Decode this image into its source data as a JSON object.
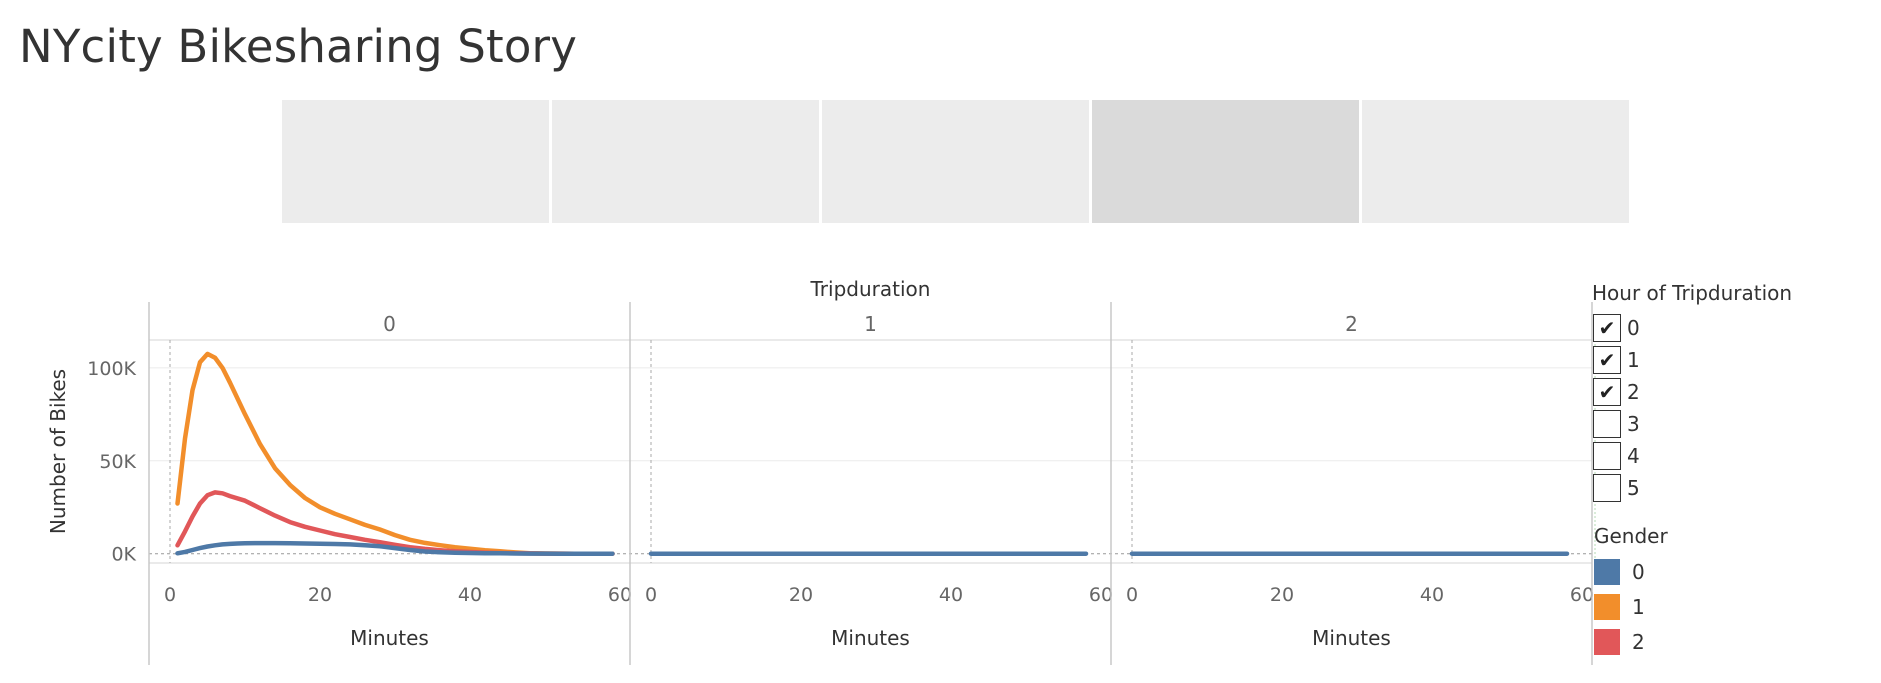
{
  "story": {
    "title": "NYcity Bikesharing Story",
    "points": [
      {
        "active": false
      },
      {
        "active": false
      },
      {
        "active": false
      },
      {
        "active": true
      },
      {
        "active": false
      }
    ]
  },
  "chart_data": {
    "type": "line",
    "title": "",
    "column_header": "Tripduration",
    "panels": [
      "0",
      "1",
      "2"
    ],
    "xlabel": "Minutes",
    "ylabel": "Number of Bikes",
    "xlim": [
      0,
      60
    ],
    "ylim": [
      -5000,
      115000
    ],
    "x_ticks": [
      0,
      20,
      40,
      60
    ],
    "x_tick_labels": [
      "0",
      "20",
      "40",
      "60"
    ],
    "y_ticks": [
      0,
      50000,
      100000
    ],
    "y_tick_labels": [
      "0K",
      "50K",
      "100K"
    ],
    "grid": true,
    "legend_position": "right",
    "series": [
      {
        "name": "0",
        "color": "#4e79a7",
        "panels": [
          {
            "x": [
              1,
              2,
              3,
              4,
              5,
              6,
              7,
              8,
              9,
              10,
              12,
              14,
              16,
              18,
              20,
              22,
              24,
              26,
              28,
              30,
              32,
              34,
              36,
              38,
              40,
              42,
              44,
              46,
              48,
              50,
              52,
              54,
              56,
              58,
              59
            ],
            "y": [
              200,
              1000,
              2000,
              3000,
              3900,
              4500,
              5000,
              5300,
              5500,
              5600,
              5700,
              5700,
              5600,
              5500,
              5400,
              5200,
              5000,
              4600,
              4000,
              3000,
              2000,
              1200,
              800,
              550,
              400,
              300,
              200,
              120,
              80,
              50,
              30,
              20,
              10,
              5,
              0
            ]
          },
          {
            "x": [
              0,
              10,
              20,
              30,
              40,
              50,
              58
            ],
            "y": [
              0,
              0,
              0,
              0,
              0,
              0,
              0
            ]
          },
          {
            "x": [
              0,
              10,
              20,
              30,
              40,
              50,
              58
            ],
            "y": [
              0,
              0,
              0,
              0,
              0,
              0,
              0
            ]
          }
        ]
      },
      {
        "name": "1",
        "color": "#f28e2b",
        "panels": [
          {
            "x": [
              1,
              2,
              3,
              4,
              5,
              6,
              7,
              8,
              10,
              12,
              14,
              16,
              18,
              20,
              22,
              24,
              26,
              28,
              30,
              32,
              34,
              36,
              38,
              40,
              42,
              44,
              46,
              48,
              50,
              52,
              54,
              56,
              58,
              59
            ],
            "y": [
              27000,
              62000,
              88000,
              103000,
              107500,
              105500,
              100000,
              92000,
              75000,
              59000,
              46000,
              37000,
              30000,
              25000,
              21500,
              18500,
              15500,
              13000,
              10000,
              7500,
              5800,
              4600,
              3500,
              2700,
              1900,
              1300,
              700,
              300,
              120,
              60,
              30,
              15,
              5,
              0
            ]
          },
          {
            "x": [],
            "y": []
          },
          {
            "x": [],
            "y": []
          }
        ]
      },
      {
        "name": "2",
        "color": "#e15759",
        "panels": [
          {
            "x": [
              1,
              2,
              3,
              4,
              5,
              6,
              7,
              8,
              10,
              12,
              14,
              16,
              18,
              20,
              22,
              24,
              26,
              28,
              30,
              32,
              34,
              36,
              38,
              40,
              42,
              44,
              46,
              48,
              50,
              52,
              54,
              56,
              58,
              59
            ],
            "y": [
              4500,
              12000,
              20000,
              27000,
              31500,
              33000,
              32500,
              31000,
              28500,
              24500,
              20500,
              17000,
              14500,
              12500,
              10500,
              9000,
              7500,
              6200,
              4800,
              3500,
              2600,
              1900,
              1300,
              900,
              600,
              380,
              250,
              150,
              80,
              50,
              30,
              15,
              5,
              0
            ]
          },
          {
            "x": [],
            "y": []
          },
          {
            "x": [],
            "y": []
          }
        ]
      }
    ]
  },
  "filters": {
    "title": "Hour of Tripduration",
    "items": [
      {
        "label": "0",
        "checked": true
      },
      {
        "label": "1",
        "checked": true
      },
      {
        "label": "2",
        "checked": true
      },
      {
        "label": "3",
        "checked": false
      },
      {
        "label": "4",
        "checked": false
      },
      {
        "label": "5",
        "checked": false
      }
    ],
    "check_glyph": "✔"
  },
  "gender_legend": {
    "title": "Gender",
    "items": [
      {
        "label": "0",
        "color": "#4e79a7"
      },
      {
        "label": "1",
        "color": "#f28e2b"
      },
      {
        "label": "2",
        "color": "#e15759"
      }
    ]
  }
}
